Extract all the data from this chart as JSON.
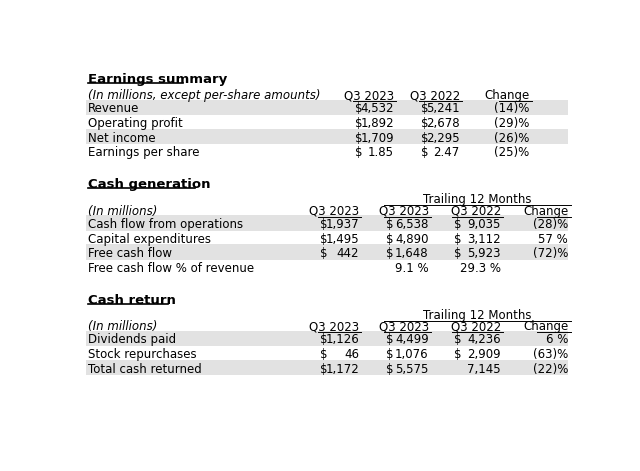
{
  "bg_color": "#ffffff",
  "section1_title": "Earnings summary",
  "section2_title": "Cash generation",
  "section3_title": "Cash return",
  "earnings_header_note": "(In millions, except per-share amounts)",
  "earnings_rows": [
    [
      "Revenue",
      "$",
      "4,532",
      "$",
      "5,241",
      "(14)%"
    ],
    [
      "Operating profit",
      "$",
      "1,892",
      "$",
      "2,678",
      "(29)%"
    ],
    [
      "Net income",
      "$",
      "1,709",
      "$",
      "2,295",
      "(26)%"
    ],
    [
      "Earnings per share",
      "$",
      "1.85",
      "$",
      "2.47",
      "(25)%"
    ]
  ],
  "earnings_shaded": [
    0,
    2
  ],
  "cash_gen_header_note": "(In millions)",
  "cash_gen_col_headers_top": "Trailing 12 Months",
  "cash_gen_rows": [
    [
      "Cash flow from operations",
      "$",
      "1,937",
      "$",
      "6,538",
      "$",
      "9,035",
      "(28)%"
    ],
    [
      "Capital expenditures",
      "$",
      "1,495",
      "$",
      "4,890",
      "$",
      "3,112",
      "57 %"
    ],
    [
      "Free cash flow",
      "$",
      "442",
      "$",
      "1,648",
      "$",
      "5,923",
      "(72)%"
    ],
    [
      "Free cash flow % of revenue",
      "",
      "",
      "",
      "9.1 %",
      "",
      "29.3 %",
      ""
    ]
  ],
  "cash_gen_shaded": [
    0,
    2
  ],
  "cash_ret_header_note": "(In millions)",
  "cash_ret_col_headers_top": "Trailing 12 Months",
  "cash_ret_rows": [
    [
      "Dividends paid",
      "$",
      "1,126",
      "$",
      "4,499",
      "$",
      "4,236",
      "6 %"
    ],
    [
      "Stock repurchases",
      "$",
      "46",
      "$",
      "1,076",
      "$",
      "2,909",
      "(63)%"
    ],
    [
      "Total cash returned",
      "$",
      "1,172",
      "$",
      "5,575",
      "",
      "7,145",
      "(22)%"
    ]
  ],
  "cash_ret_shaded": [
    0,
    2
  ],
  "shaded_color": "#e2e2e2",
  "font_size": 8.5,
  "title_font_size": 9.5
}
